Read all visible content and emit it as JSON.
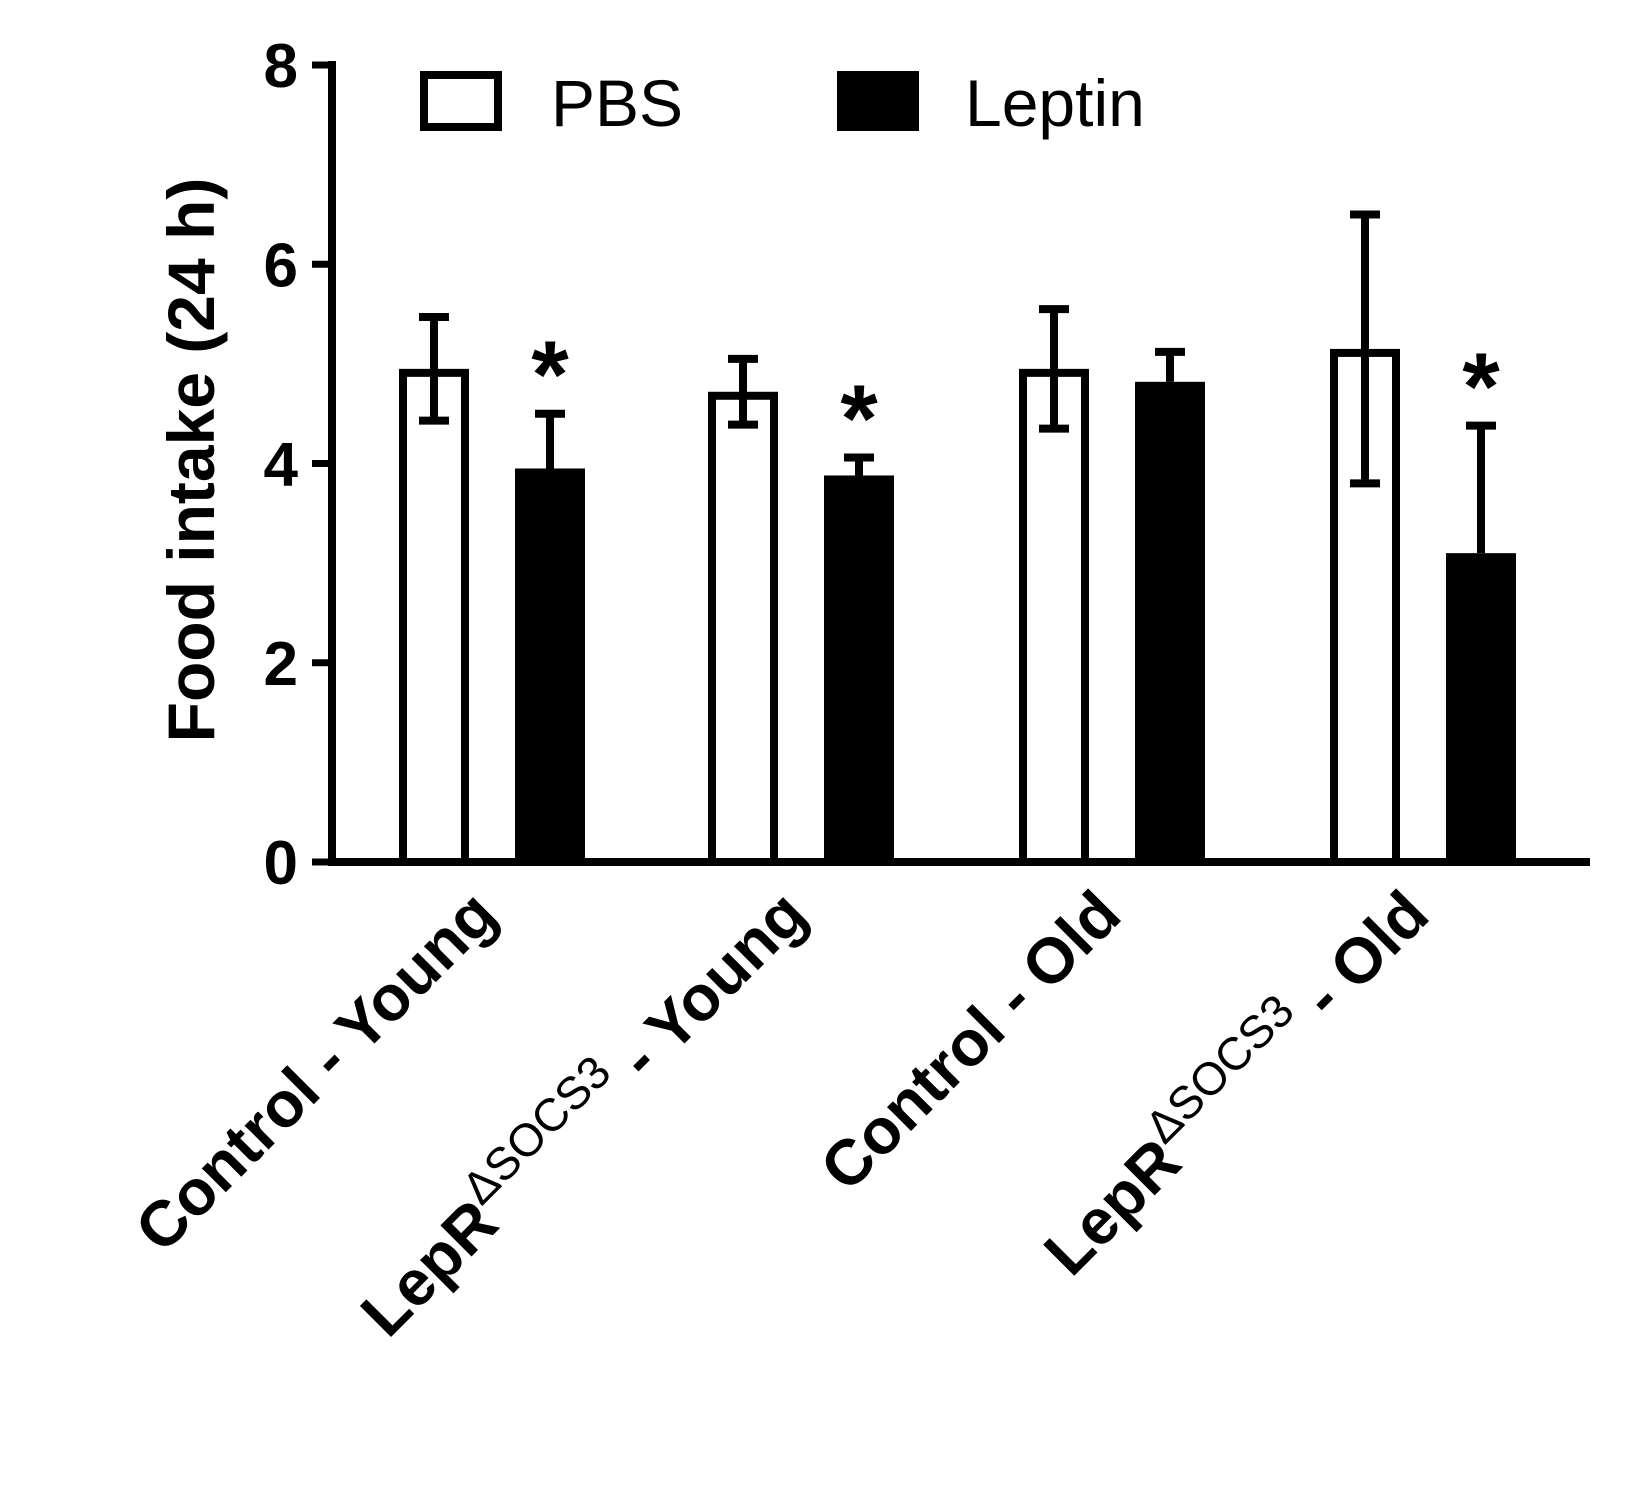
{
  "chart_data": {
    "type": "bar",
    "ylabel": "Food intake (24 h)",
    "ylim": [
      0,
      8
    ],
    "yticks": [
      0,
      2,
      4,
      6,
      8
    ],
    "legend_position": "top",
    "categories": [
      {
        "main": "Control - Young",
        "sup": "",
        "rest": ""
      },
      {
        "main": "LepR",
        "sup": "ΔSOCS3",
        "rest": " - Young"
      },
      {
        "main": "Control - Old",
        "sup": "",
        "rest": ""
      },
      {
        "main": "LepR",
        "sup": "ΔSOCS3",
        "rest": " - Old"
      }
    ],
    "series": [
      {
        "name": "PBS",
        "color": "#ffffff",
        "values": [
          4.95,
          4.72,
          4.95,
          5.15
        ],
        "errors": [
          0.52,
          0.33,
          0.6,
          1.35
        ],
        "significance": [
          "",
          "",
          "",
          ""
        ]
      },
      {
        "name": "Leptin",
        "color": "#000000",
        "values": [
          3.95,
          3.88,
          4.82,
          3.1
        ],
        "errors": [
          0.55,
          0.18,
          0.3,
          1.28
        ],
        "significance": [
          "*",
          "*",
          "",
          "*"
        ]
      }
    ]
  }
}
